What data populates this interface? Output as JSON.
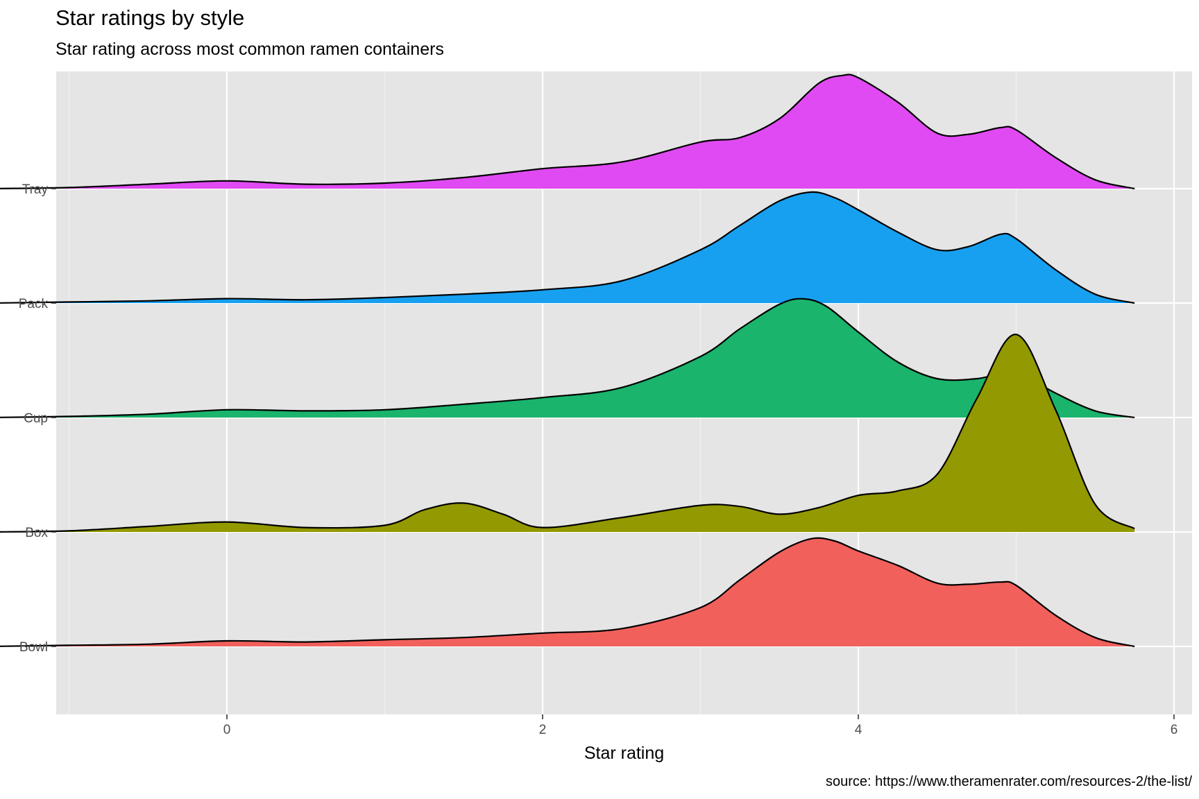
{
  "chart_data": {
    "type": "ridgeline",
    "title": "Star ratings by style",
    "subtitle": "Star rating across most common ramen containers",
    "xlabel": "Star rating",
    "ylabel": "",
    "caption": "source: https://www.theramenrater.com/resources-2/the-list/",
    "xlim": [
      -2.0,
      6.0
    ],
    "x_ticks": [
      0,
      2,
      4,
      6
    ],
    "grid": true,
    "legend": "none",
    "categories": [
      "Bowl",
      "Box",
      "Cup",
      "Pack",
      "Tray"
    ],
    "density_x_range": [
      -1.5,
      5.75
    ],
    "series": [
      {
        "name": "Bowl",
        "color": "#F2605C",
        "points": [
          [
            -1.5,
            0.0
          ],
          [
            -1.0,
            0.01
          ],
          [
            -0.5,
            0.02
          ],
          [
            0.0,
            0.05
          ],
          [
            0.5,
            0.04
          ],
          [
            1.0,
            0.06
          ],
          [
            1.5,
            0.08
          ],
          [
            2.0,
            0.12
          ],
          [
            2.5,
            0.16
          ],
          [
            3.0,
            0.35
          ],
          [
            3.25,
            0.6
          ],
          [
            3.5,
            0.85
          ],
          [
            3.7,
            0.97
          ],
          [
            3.85,
            0.95
          ],
          [
            4.0,
            0.86
          ],
          [
            4.25,
            0.73
          ],
          [
            4.5,
            0.57
          ],
          [
            4.7,
            0.56
          ],
          [
            4.9,
            0.58
          ],
          [
            5.0,
            0.55
          ],
          [
            5.25,
            0.28
          ],
          [
            5.5,
            0.08
          ],
          [
            5.75,
            0.0
          ]
        ]
      },
      {
        "name": "Box",
        "color": "#939900",
        "points": [
          [
            -1.5,
            0.0
          ],
          [
            -1.0,
            0.01
          ],
          [
            -0.5,
            0.05
          ],
          [
            0.0,
            0.09
          ],
          [
            0.5,
            0.04
          ],
          [
            1.0,
            0.06
          ],
          [
            1.25,
            0.2
          ],
          [
            1.5,
            0.26
          ],
          [
            1.75,
            0.16
          ],
          [
            2.0,
            0.04
          ],
          [
            2.5,
            0.13
          ],
          [
            3.0,
            0.24
          ],
          [
            3.25,
            0.23
          ],
          [
            3.5,
            0.16
          ],
          [
            3.75,
            0.22
          ],
          [
            4.0,
            0.33
          ],
          [
            4.25,
            0.37
          ],
          [
            4.5,
            0.52
          ],
          [
            4.75,
            1.2
          ],
          [
            5.0,
            1.78
          ],
          [
            5.25,
            1.1
          ],
          [
            5.5,
            0.25
          ],
          [
            5.75,
            0.03
          ]
        ]
      },
      {
        "name": "Cup",
        "color": "#1AB46C",
        "points": [
          [
            -1.5,
            0.0
          ],
          [
            -1.0,
            0.01
          ],
          [
            -0.5,
            0.03
          ],
          [
            0.0,
            0.07
          ],
          [
            0.5,
            0.06
          ],
          [
            1.0,
            0.07
          ],
          [
            1.5,
            0.12
          ],
          [
            2.0,
            0.18
          ],
          [
            2.5,
            0.27
          ],
          [
            3.0,
            0.55
          ],
          [
            3.25,
            0.8
          ],
          [
            3.5,
            1.02
          ],
          [
            3.65,
            1.07
          ],
          [
            3.8,
            1.0
          ],
          [
            4.0,
            0.77
          ],
          [
            4.25,
            0.5
          ],
          [
            4.5,
            0.35
          ],
          [
            4.75,
            0.35
          ],
          [
            4.9,
            0.4
          ],
          [
            5.0,
            0.41
          ],
          [
            5.25,
            0.22
          ],
          [
            5.5,
            0.06
          ],
          [
            5.75,
            0.0
          ]
        ]
      },
      {
        "name": "Pack",
        "color": "#18A0F0",
        "points": [
          [
            -1.5,
            0.0
          ],
          [
            -1.0,
            0.01
          ],
          [
            -0.5,
            0.02
          ],
          [
            0.0,
            0.04
          ],
          [
            0.5,
            0.03
          ],
          [
            1.0,
            0.05
          ],
          [
            1.5,
            0.08
          ],
          [
            2.0,
            0.12
          ],
          [
            2.5,
            0.2
          ],
          [
            3.0,
            0.48
          ],
          [
            3.25,
            0.7
          ],
          [
            3.5,
            0.92
          ],
          [
            3.7,
            1.0
          ],
          [
            3.85,
            0.95
          ],
          [
            4.0,
            0.84
          ],
          [
            4.25,
            0.64
          ],
          [
            4.5,
            0.48
          ],
          [
            4.7,
            0.51
          ],
          [
            4.9,
            0.62
          ],
          [
            5.0,
            0.58
          ],
          [
            5.25,
            0.3
          ],
          [
            5.5,
            0.08
          ],
          [
            5.75,
            0.0
          ]
        ]
      },
      {
        "name": "Tray",
        "color": "#E04AF2",
        "points": [
          [
            -1.5,
            0.0
          ],
          [
            -1.0,
            0.01
          ],
          [
            -0.5,
            0.04
          ],
          [
            0.0,
            0.07
          ],
          [
            0.5,
            0.04
          ],
          [
            1.0,
            0.05
          ],
          [
            1.5,
            0.1
          ],
          [
            2.0,
            0.18
          ],
          [
            2.5,
            0.24
          ],
          [
            3.0,
            0.42
          ],
          [
            3.25,
            0.46
          ],
          [
            3.5,
            0.63
          ],
          [
            3.75,
            0.95
          ],
          [
            3.9,
            1.02
          ],
          [
            4.0,
            1.0
          ],
          [
            4.25,
            0.78
          ],
          [
            4.5,
            0.5
          ],
          [
            4.7,
            0.49
          ],
          [
            4.9,
            0.55
          ],
          [
            5.0,
            0.53
          ],
          [
            5.25,
            0.28
          ],
          [
            5.5,
            0.08
          ],
          [
            5.75,
            0.0
          ]
        ]
      }
    ]
  }
}
